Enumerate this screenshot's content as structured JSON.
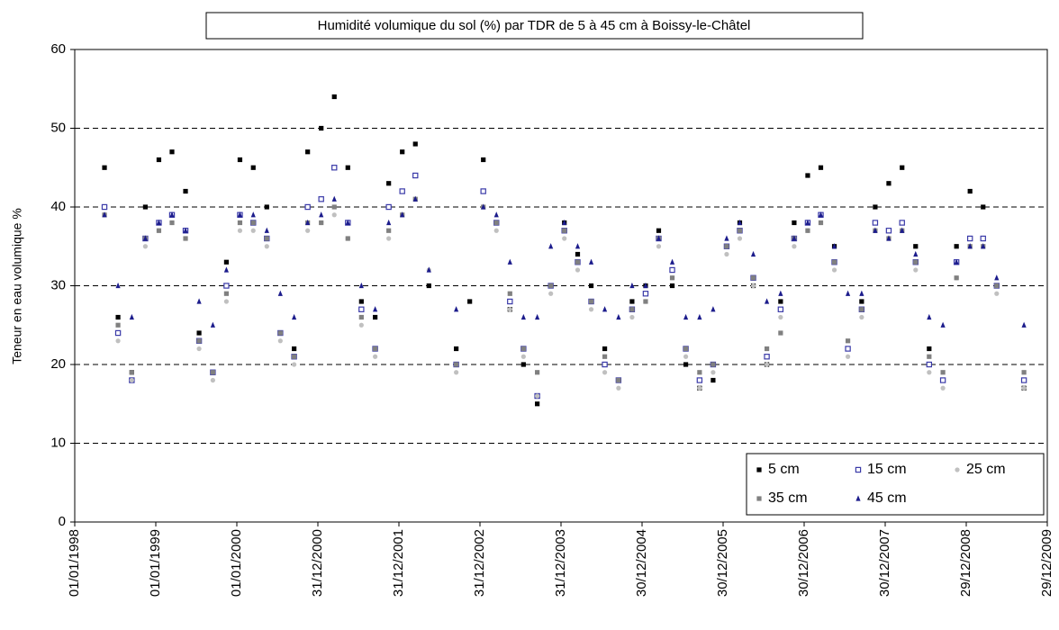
{
  "chart_data": {
    "type": "scatter",
    "title": "Humidité volumique du sol (%) par TDR de 5 à 45 cm à Boissy-le-Châtel",
    "y_label": "Teneur en eau volumique %",
    "x": [
      "15/05/1998",
      "15/07/1998",
      "15/09/1998",
      "15/11/1998",
      "15/01/1999",
      "15/03/1999",
      "15/05/1999",
      "15/07/1999",
      "15/09/1999",
      "15/11/1999",
      "15/01/2000",
      "15/03/2000",
      "15/05/2000",
      "15/07/2000",
      "15/09/2000",
      "15/11/2000",
      "15/01/2001",
      "15/03/2001",
      "15/05/2001",
      "15/07/2001",
      "15/09/2001",
      "15/11/2001",
      "15/01/2002",
      "15/03/2002",
      "15/05/2002",
      "15/07/2002",
      "15/09/2002",
      "15/11/2002",
      "15/01/2003",
      "15/03/2003",
      "15/05/2003",
      "15/07/2003",
      "15/09/2003",
      "15/11/2003",
      "15/01/2004",
      "15/03/2004",
      "15/05/2004",
      "15/07/2004",
      "15/09/2004",
      "15/11/2004",
      "15/01/2005",
      "15/03/2005",
      "15/05/2005",
      "15/07/2005",
      "15/09/2005",
      "15/11/2005",
      "15/01/2006",
      "15/03/2006",
      "15/05/2006",
      "15/07/2006",
      "15/09/2006",
      "15/11/2006",
      "15/01/2007",
      "15/03/2007",
      "15/05/2007",
      "15/07/2007",
      "15/09/2007",
      "15/11/2007",
      "15/01/2008",
      "15/03/2008",
      "15/05/2008",
      "15/07/2008",
      "15/09/2008",
      "15/11/2008",
      "15/01/2009",
      "15/03/2009",
      "15/05/2009",
      "15/07/2009",
      "15/09/2009"
    ],
    "series": [
      {
        "name": "5 cm",
        "color": "#000000",
        "marker": "square",
        "values": [
          45,
          26,
          19,
          40,
          46,
          47,
          42,
          24,
          19,
          33,
          46,
          45,
          40,
          24,
          22,
          47,
          50,
          54,
          45,
          28,
          26,
          43,
          47,
          48,
          30,
          null,
          22,
          28,
          46,
          38,
          27,
          20,
          15,
          30,
          38,
          34,
          30,
          22,
          18,
          28,
          30,
          37,
          30,
          20,
          17,
          18,
          35,
          38,
          30,
          20,
          28,
          38,
          44,
          45,
          35,
          22,
          28,
          40,
          43,
          45,
          35,
          22,
          18,
          35,
          42,
          40,
          30,
          null,
          17
        ]
      },
      {
        "name": "15 cm",
        "color": "#3a3aa8",
        "marker": "hollow-square",
        "values": [
          40,
          24,
          18,
          36,
          38,
          39,
          37,
          23,
          19,
          30,
          39,
          38,
          36,
          24,
          21,
          40,
          41,
          45,
          38,
          27,
          22,
          40,
          42,
          44,
          null,
          null,
          20,
          null,
          42,
          38,
          28,
          22,
          16,
          30,
          37,
          33,
          28,
          20,
          18,
          27,
          29,
          36,
          32,
          22,
          18,
          20,
          35,
          37,
          31,
          21,
          27,
          36,
          38,
          39,
          33,
          22,
          27,
          38,
          37,
          38,
          33,
          20,
          18,
          33,
          36,
          36,
          30,
          null,
          18
        ]
      },
      {
        "name": "25 cm",
        "color": "#c0c0c0",
        "marker": "circle",
        "values": [
          39,
          23,
          18,
          35,
          37,
          38,
          36,
          22,
          18,
          28,
          37,
          37,
          35,
          23,
          20,
          37,
          38,
          39,
          36,
          25,
          21,
          36,
          39,
          41,
          32,
          null,
          19,
          null,
          40,
          37,
          27,
          21,
          16,
          29,
          36,
          32,
          27,
          19,
          17,
          26,
          28,
          35,
          31,
          21,
          17,
          19,
          34,
          36,
          30,
          20,
          26,
          35,
          37,
          38,
          32,
          21,
          26,
          37,
          36,
          37,
          32,
          19,
          17,
          31,
          35,
          35,
          29,
          null,
          17
        ]
      },
      {
        "name": "35 cm",
        "color": "#808080",
        "marker": "square",
        "values": [
          39,
          25,
          19,
          36,
          37,
          38,
          36,
          23,
          19,
          29,
          38,
          38,
          36,
          24,
          21,
          38,
          38,
          40,
          36,
          26,
          22,
          37,
          39,
          41,
          null,
          null,
          20,
          null,
          40,
          38,
          29,
          22,
          19,
          30,
          37,
          33,
          28,
          21,
          18,
          27,
          28,
          36,
          31,
          22,
          19,
          20,
          35,
          37,
          31,
          22,
          24,
          36,
          37,
          38,
          33,
          23,
          27,
          37,
          36,
          37,
          33,
          21,
          19,
          31,
          35,
          35,
          30,
          null,
          19
        ]
      },
      {
        "name": "45 cm",
        "color": "#1c1c8c",
        "marker": "triangle",
        "values": [
          39,
          30,
          26,
          36,
          38,
          39,
          37,
          28,
          25,
          32,
          39,
          39,
          37,
          29,
          26,
          38,
          39,
          41,
          38,
          30,
          27,
          38,
          39,
          41,
          32,
          null,
          27,
          null,
          40,
          39,
          33,
          26,
          26,
          35,
          38,
          35,
          33,
          27,
          26,
          30,
          30,
          36,
          33,
          26,
          26,
          27,
          36,
          38,
          34,
          28,
          29,
          36,
          38,
          39,
          35,
          29,
          29,
          37,
          36,
          37,
          34,
          26,
          25,
          33,
          35,
          35,
          31,
          null,
          25
        ]
      }
    ],
    "xlim": [
      "01/01/1998",
      "29/12/2009"
    ],
    "xticks": [
      "01/01/1998",
      "01/01/1999",
      "01/01/2000",
      "31/12/2000",
      "31/12/2001",
      "31/12/2002",
      "31/12/2003",
      "30/12/2004",
      "30/12/2005",
      "30/12/2006",
      "30/12/2007",
      "29/12/2008",
      "29/12/2009"
    ],
    "ylim": [
      0,
      60
    ],
    "yticks": [
      0,
      10,
      20,
      30,
      40,
      50,
      60
    ],
    "grid": true,
    "legend": "lower right"
  }
}
